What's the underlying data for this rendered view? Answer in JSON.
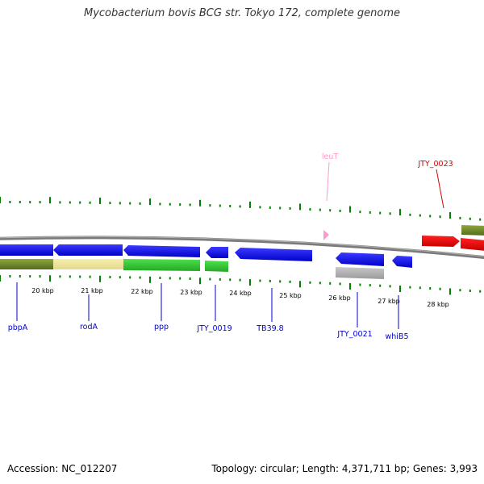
{
  "title": "Mycobacterium bovis BCG str. Tokyo 172, complete genome",
  "footer": {
    "accession": "Accession: NC_012207",
    "topology": "Topology: circular; Length: 4,371,711 bp; Genes: 3,993"
  },
  "colors": {
    "cds_forward": "#0000ee",
    "cds_reverse": "#0000ee",
    "trna": "#ff99cc",
    "pseudo_gene": "#ee0000",
    "class_olive": "#6b8e23",
    "class_yellow": "#f0e68c",
    "class_green": "#32cd32",
    "class_gray": "#aaaaaa",
    "tick_green": "#008000",
    "backbone": "#808080"
  },
  "scale": {
    "unit": "kbp",
    "labels": [
      "20 kbp",
      "21 kbp",
      "22 kbp",
      "23 kbp",
      "24 kbp",
      "25 kbp",
      "26 kbp",
      "27 kbp",
      "28 kbp"
    ]
  },
  "genes": [
    {
      "label": "pbpA",
      "type": "CDS"
    },
    {
      "label": "rodA",
      "type": "CDS"
    },
    {
      "label": "ppp",
      "type": "CDS"
    },
    {
      "label": "JTY_0019",
      "type": "CDS"
    },
    {
      "label": "TB39.8",
      "type": "CDS"
    },
    {
      "label": "JTY_0021",
      "type": "CDS"
    },
    {
      "label": "whiB5",
      "type": "CDS"
    },
    {
      "label": "leuT",
      "type": "tRNA"
    },
    {
      "label": "JTY_0023",
      "type": "pseudo"
    }
  ]
}
